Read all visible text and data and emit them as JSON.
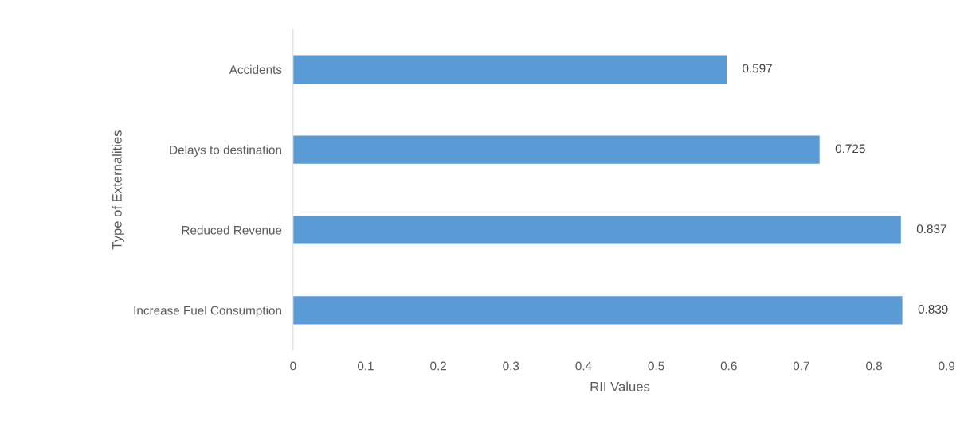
{
  "chart_data": {
    "type": "bar",
    "orientation": "horizontal",
    "xlabel": "RII Values",
    "ylabel": "Type of Externalities",
    "categories": [
      "Accidents",
      "Delays to destination",
      "Reduced Revenue",
      "Increase Fuel Consumption"
    ],
    "values": [
      0.597,
      0.725,
      0.837,
      0.839
    ],
    "color": "#5b9bd5",
    "xlim": [
      0,
      0.9
    ],
    "xticks": [
      0,
      0.1,
      0.2,
      0.3,
      0.4,
      0.5,
      0.6,
      0.7,
      0.8,
      0.9
    ],
    "data_labels": true,
    "grid": false,
    "legend": false
  }
}
